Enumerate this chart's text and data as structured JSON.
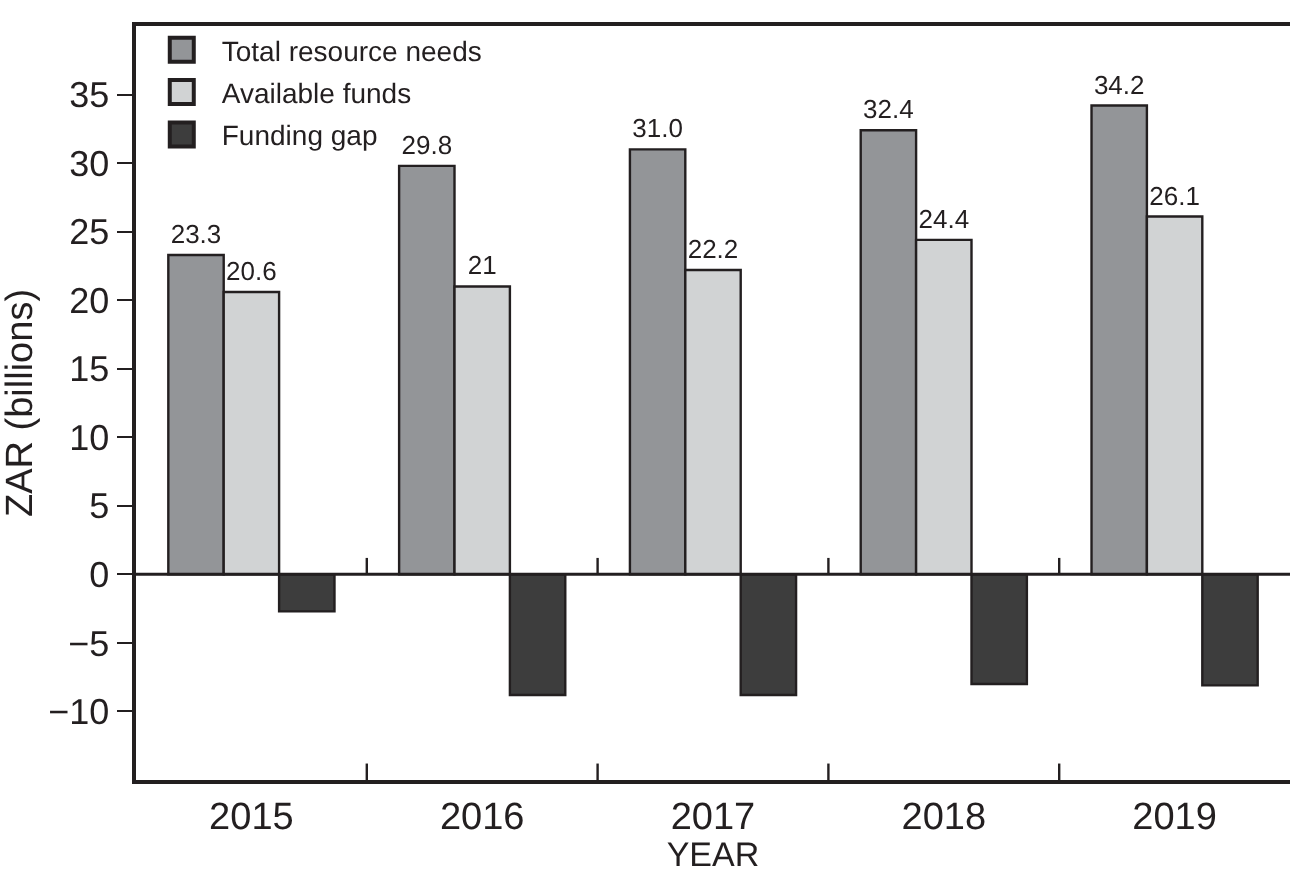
{
  "chart_data": {
    "type": "bar",
    "xlabel": "YEAR",
    "ylabel": "ZAR (billions)",
    "categories": [
      "2015",
      "2016",
      "2017",
      "2018",
      "2019"
    ],
    "series": [
      {
        "name": "Total resource needs",
        "color": "#939598",
        "values": [
          23.3,
          29.8,
          31.0,
          32.4,
          34.2
        ],
        "value_labels": [
          "23.3",
          "29.8",
          "31.0",
          "32.4",
          "34.2"
        ]
      },
      {
        "name": "Available funds",
        "color": "#d1d3d4",
        "values": [
          20.6,
          21,
          22.2,
          24.4,
          26.1
        ],
        "value_labels": [
          "20.6",
          "21",
          "22.2",
          "24.4",
          "26.1"
        ]
      },
      {
        "name": "Funding gap",
        "color": "#3d3d3d",
        "values": [
          -2.7,
          -8.8,
          -8.8,
          -8.0,
          -8.1
        ]
      }
    ],
    "ylim": [
      -15,
      40
    ],
    "yticks": [
      -10,
      -5,
      0,
      5,
      10,
      15,
      20,
      25,
      30,
      35
    ],
    "ref_lines": [
      {
        "axis": "y",
        "value": 0
      }
    ],
    "legend": "top left"
  }
}
